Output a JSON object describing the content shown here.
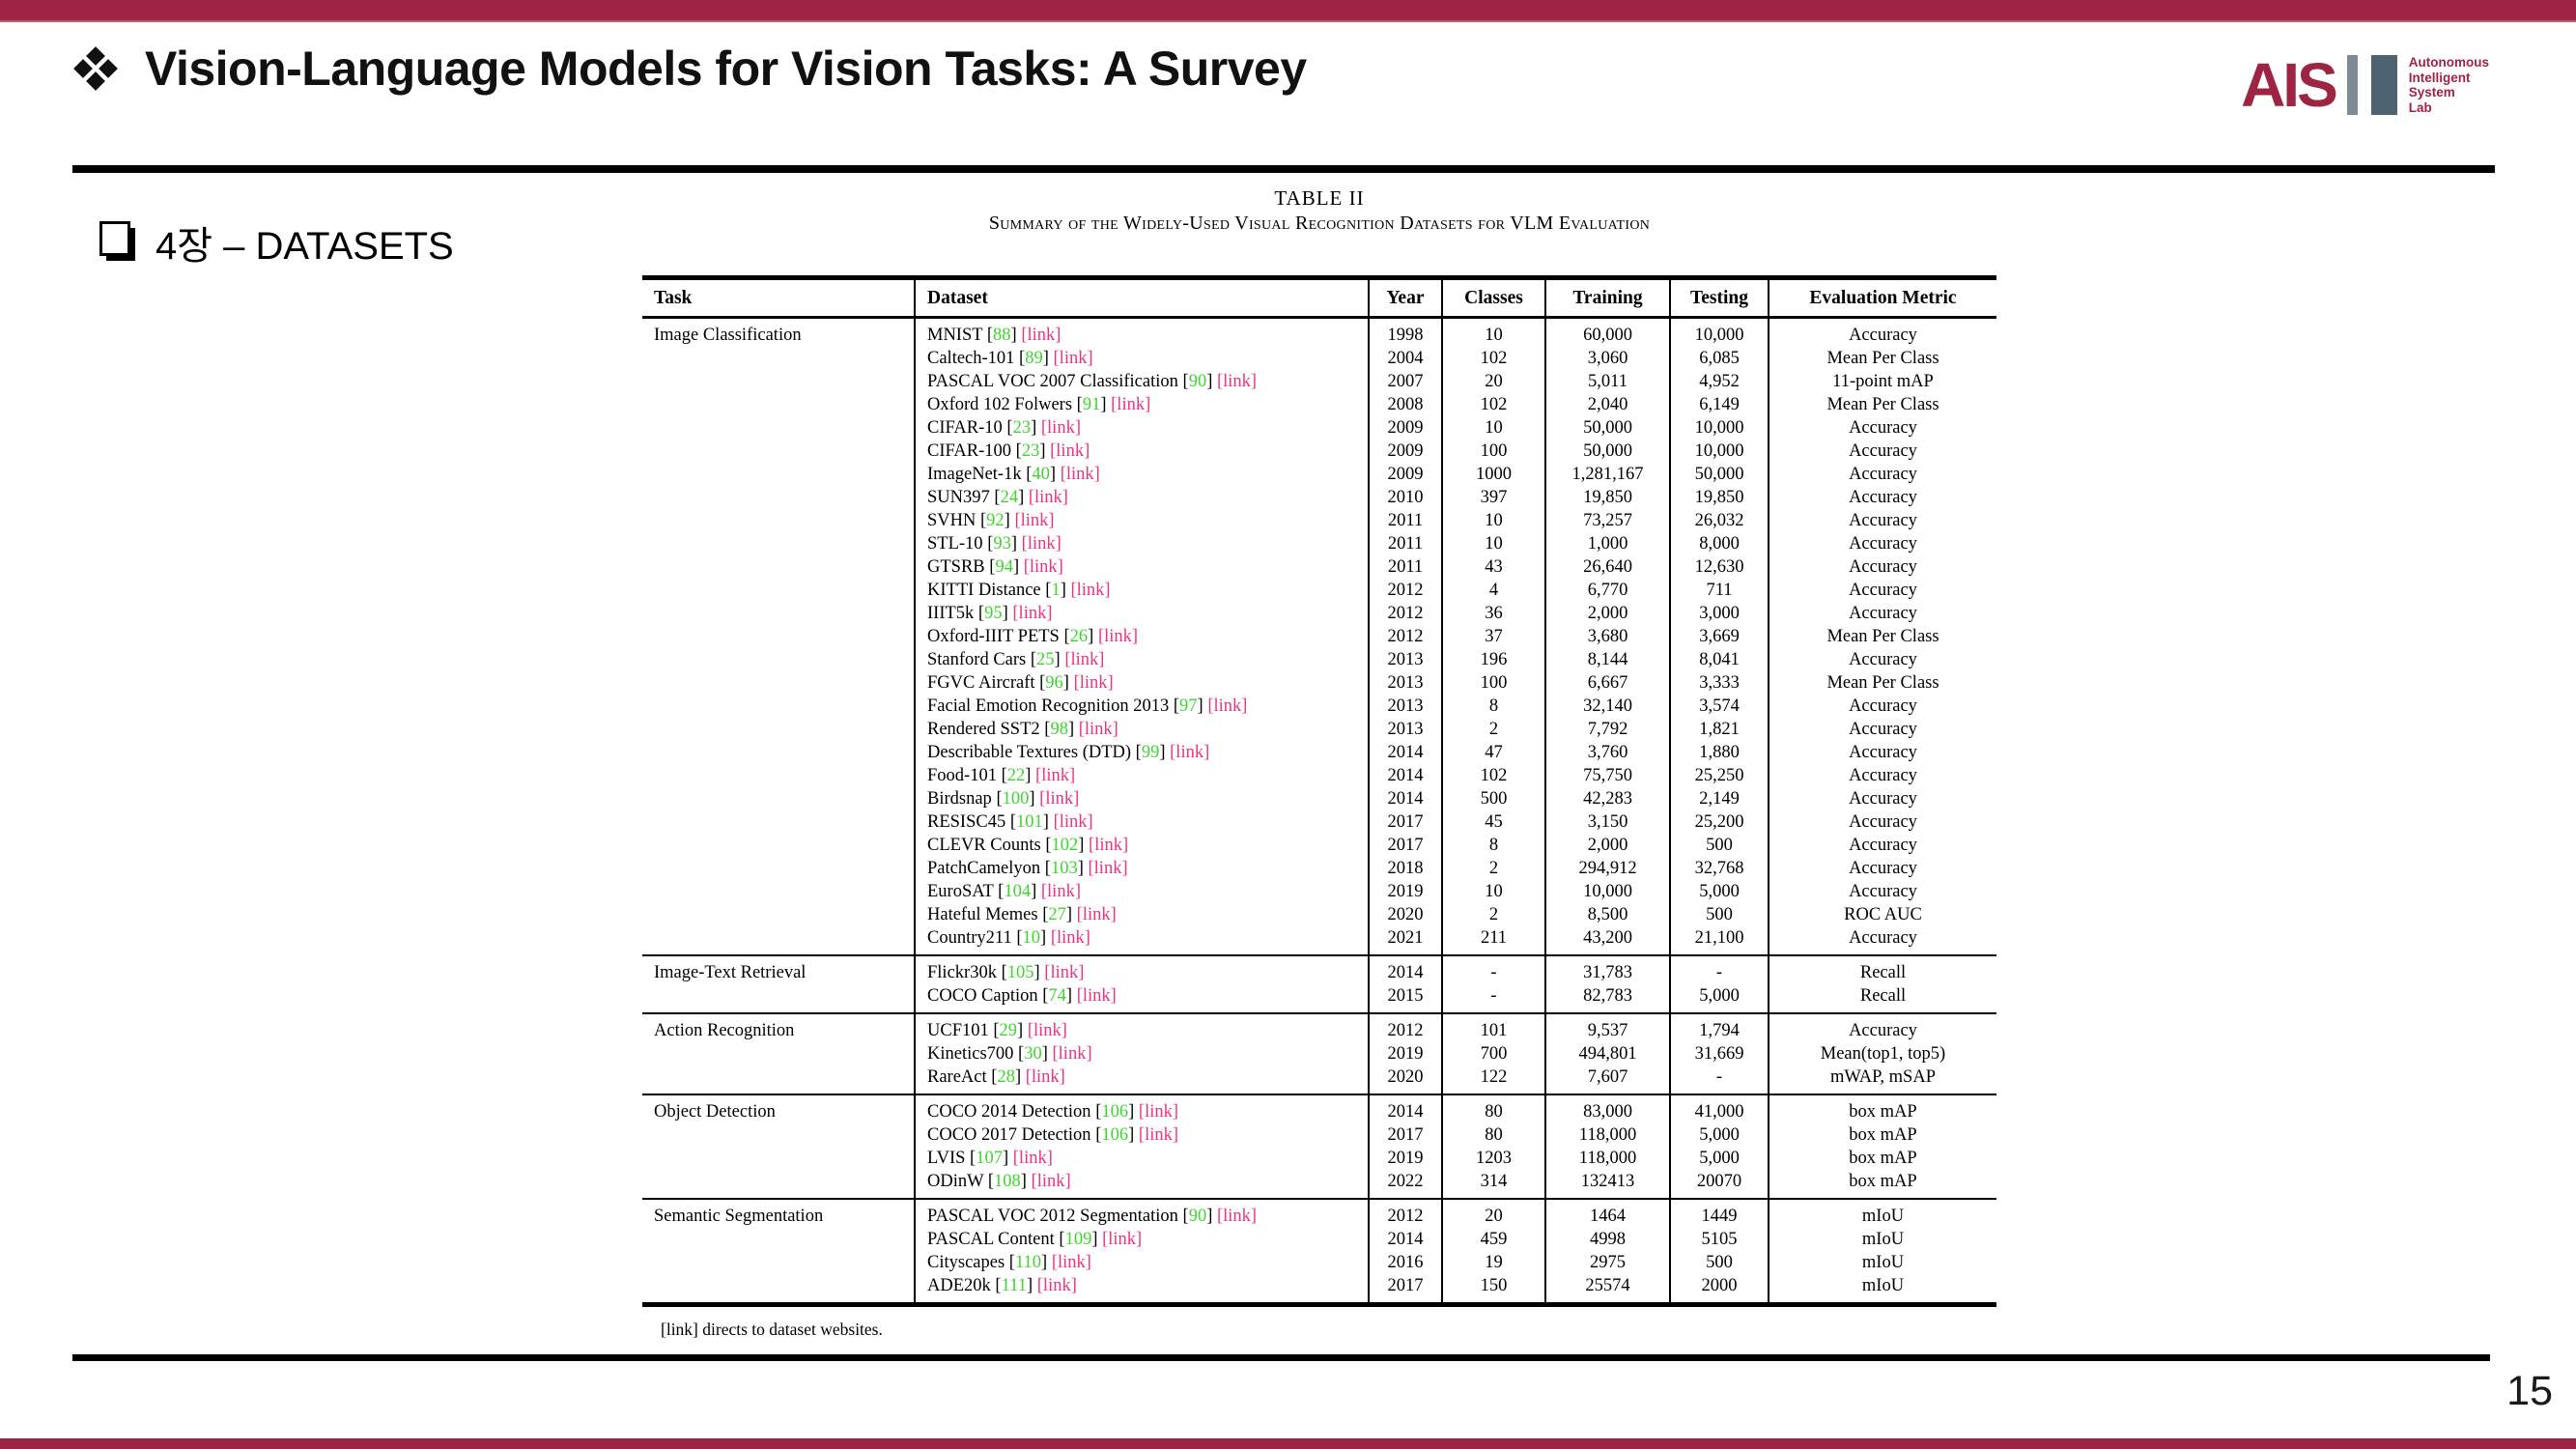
{
  "slide": {
    "title": "Vision-Language Models for Vision Tasks: A Survey",
    "section_title": "4장 – DATASETS",
    "page_number": "15"
  },
  "logo": {
    "text": "AIS",
    "lines": [
      "Autonomous",
      "Intelligent",
      "System",
      "Lab"
    ]
  },
  "colors": {
    "accent_maroon": "#9e2444",
    "reference_green": "#3fd42f",
    "link_pink": "#ec3382",
    "logo_bar_light": "#7e8b94",
    "logo_bar_dark": "#4e6370"
  },
  "table": {
    "caption_line1": "TABLE II",
    "caption_line2": "Summary of the Widely-Used Visual Recognition Datasets for VLM Evaluation",
    "headers": [
      "Task",
      "Dataset",
      "Year",
      "Classes",
      "Training",
      "Testing",
      "Evaluation Metric"
    ],
    "link_label": "[link]",
    "footnote": "[link] directs to dataset websites.",
    "sections": [
      {
        "task": "Image Classification",
        "rows": [
          {
            "dataset": "MNIST",
            "ref": "88",
            "year": "1998",
            "classes": "10",
            "training": "60,000",
            "testing": "10,000",
            "metric": "Accuracy"
          },
          {
            "dataset": "Caltech-101",
            "ref": "89",
            "year": "2004",
            "classes": "102",
            "training": "3,060",
            "testing": "6,085",
            "metric": "Mean Per Class"
          },
          {
            "dataset": "PASCAL VOC 2007 Classification",
            "ref": "90",
            "year": "2007",
            "classes": "20",
            "training": "5,011",
            "testing": "4,952",
            "metric": "11-point mAP"
          },
          {
            "dataset": "Oxford 102 Folwers",
            "ref": "91",
            "year": "2008",
            "classes": "102",
            "training": "2,040",
            "testing": "6,149",
            "metric": "Mean Per Class"
          },
          {
            "dataset": "CIFAR-10",
            "ref": "23",
            "year": "2009",
            "classes": "10",
            "training": "50,000",
            "testing": "10,000",
            "metric": "Accuracy"
          },
          {
            "dataset": "CIFAR-100",
            "ref": "23",
            "year": "2009",
            "classes": "100",
            "training": "50,000",
            "testing": "10,000",
            "metric": "Accuracy"
          },
          {
            "dataset": "ImageNet-1k",
            "ref": "40",
            "year": "2009",
            "classes": "1000",
            "training": "1,281,167",
            "testing": "50,000",
            "metric": "Accuracy"
          },
          {
            "dataset": "SUN397",
            "ref": "24",
            "year": "2010",
            "classes": "397",
            "training": "19,850",
            "testing": "19,850",
            "metric": "Accuracy"
          },
          {
            "dataset": "SVHN",
            "ref": "92",
            "year": "2011",
            "classes": "10",
            "training": "73,257",
            "testing": "26,032",
            "metric": "Accuracy"
          },
          {
            "dataset": "STL-10",
            "ref": "93",
            "year": "2011",
            "classes": "10",
            "training": "1,000",
            "testing": "8,000",
            "metric": "Accuracy"
          },
          {
            "dataset": "GTSRB",
            "ref": "94",
            "year": "2011",
            "classes": "43",
            "training": "26,640",
            "testing": "12,630",
            "metric": "Accuracy"
          },
          {
            "dataset": "KITTI Distance",
            "ref": "1",
            "year": "2012",
            "classes": "4",
            "training": "6,770",
            "testing": "711",
            "metric": "Accuracy"
          },
          {
            "dataset": "IIIT5k",
            "ref": "95",
            "year": "2012",
            "classes": "36",
            "training": "2,000",
            "testing": "3,000",
            "metric": "Accuracy"
          },
          {
            "dataset": "Oxford-IIIT PETS",
            "ref": "26",
            "year": "2012",
            "classes": "37",
            "training": "3,680",
            "testing": "3,669",
            "metric": "Mean Per Class"
          },
          {
            "dataset": "Stanford Cars",
            "ref": "25",
            "year": "2013",
            "classes": "196",
            "training": "8,144",
            "testing": "8,041",
            "metric": "Accuracy"
          },
          {
            "dataset": "FGVC Aircraft",
            "ref": "96",
            "year": "2013",
            "classes": "100",
            "training": "6,667",
            "testing": "3,333",
            "metric": "Mean Per Class"
          },
          {
            "dataset": "Facial Emotion Recognition 2013",
            "ref": "97",
            "year": "2013",
            "classes": "8",
            "training": "32,140",
            "testing": "3,574",
            "metric": "Accuracy"
          },
          {
            "dataset": "Rendered SST2",
            "ref": "98",
            "year": "2013",
            "classes": "2",
            "training": "7,792",
            "testing": "1,821",
            "metric": "Accuracy"
          },
          {
            "dataset": "Describable Textures (DTD)",
            "ref": "99",
            "year": "2014",
            "classes": "47",
            "training": "3,760",
            "testing": "1,880",
            "metric": "Accuracy"
          },
          {
            "dataset": "Food-101",
            "ref": "22",
            "year": "2014",
            "classes": "102",
            "training": "75,750",
            "testing": "25,250",
            "metric": "Accuracy"
          },
          {
            "dataset": "Birdsnap",
            "ref": "100",
            "year": "2014",
            "classes": "500",
            "training": "42,283",
            "testing": "2,149",
            "metric": "Accuracy"
          },
          {
            "dataset": "RESISC45",
            "ref": "101",
            "year": "2017",
            "classes": "45",
            "training": "3,150",
            "testing": "25,200",
            "metric": "Accuracy"
          },
          {
            "dataset": "CLEVR Counts",
            "ref": "102",
            "year": "2017",
            "classes": "8",
            "training": "2,000",
            "testing": "500",
            "metric": "Accuracy"
          },
          {
            "dataset": "PatchCamelyon",
            "ref": "103",
            "year": "2018",
            "classes": "2",
            "training": "294,912",
            "testing": "32,768",
            "metric": "Accuracy"
          },
          {
            "dataset": "EuroSAT",
            "ref": "104",
            "year": "2019",
            "classes": "10",
            "training": "10,000",
            "testing": "5,000",
            "metric": "Accuracy"
          },
          {
            "dataset": "Hateful Memes",
            "ref": "27",
            "year": "2020",
            "classes": "2",
            "training": "8,500",
            "testing": "500",
            "metric": "ROC AUC"
          },
          {
            "dataset": "Country211",
            "ref": "10",
            "year": "2021",
            "classes": "211",
            "training": "43,200",
            "testing": "21,100",
            "metric": "Accuracy"
          }
        ]
      },
      {
        "task": "Image-Text Retrieval",
        "rows": [
          {
            "dataset": "Flickr30k",
            "ref": "105",
            "year": "2014",
            "classes": "-",
            "training": "31,783",
            "testing": "-",
            "metric": "Recall"
          },
          {
            "dataset": "COCO Caption",
            "ref": "74",
            "year": "2015",
            "classes": "-",
            "training": "82,783",
            "testing": "5,000",
            "metric": "Recall"
          }
        ]
      },
      {
        "task": "Action Recognition",
        "rows": [
          {
            "dataset": "UCF101",
            "ref": "29",
            "year": "2012",
            "classes": "101",
            "training": "9,537",
            "testing": "1,794",
            "metric": "Accuracy"
          },
          {
            "dataset": "Kinetics700",
            "ref": "30",
            "year": "2019",
            "classes": "700",
            "training": "494,801",
            "testing": "31,669",
            "metric": "Mean(top1, top5)"
          },
          {
            "dataset": "RareAct",
            "ref": "28",
            "year": "2020",
            "classes": "122",
            "training": "7,607",
            "testing": "-",
            "metric": "mWAP, mSAP"
          }
        ]
      },
      {
        "task": "Object Detection",
        "rows": [
          {
            "dataset": "COCO 2014 Detection",
            "ref": "106",
            "year": "2014",
            "classes": "80",
            "training": "83,000",
            "testing": "41,000",
            "metric": "box mAP"
          },
          {
            "dataset": "COCO 2017 Detection",
            "ref": "106",
            "year": "2017",
            "classes": "80",
            "training": "118,000",
            "testing": "5,000",
            "metric": "box mAP"
          },
          {
            "dataset": "LVIS",
            "ref": "107",
            "year": "2019",
            "classes": "1203",
            "training": "118,000",
            "testing": "5,000",
            "metric": "box mAP"
          },
          {
            "dataset": "ODinW",
            "ref": "108",
            "year": "2022",
            "classes": "314",
            "training": "132413",
            "testing": "20070",
            "metric": "box mAP"
          }
        ]
      },
      {
        "task": "Semantic Segmentation",
        "rows": [
          {
            "dataset": "PASCAL VOC 2012 Segmentation",
            "ref": "90",
            "year": "2012",
            "classes": "20",
            "training": "1464",
            "testing": "1449",
            "metric": "mIoU"
          },
          {
            "dataset": "PASCAL Content",
            "ref": "109",
            "year": "2014",
            "classes": "459",
            "training": "4998",
            "testing": "5105",
            "metric": "mIoU"
          },
          {
            "dataset": "Cityscapes",
            "ref": "110",
            "year": "2016",
            "classes": "19",
            "training": "2975",
            "testing": "500",
            "metric": "mIoU"
          },
          {
            "dataset": "ADE20k",
            "ref": "111",
            "year": "2017",
            "classes": "150",
            "training": "25574",
            "testing": "2000",
            "metric": "mIoU"
          }
        ]
      }
    ]
  }
}
